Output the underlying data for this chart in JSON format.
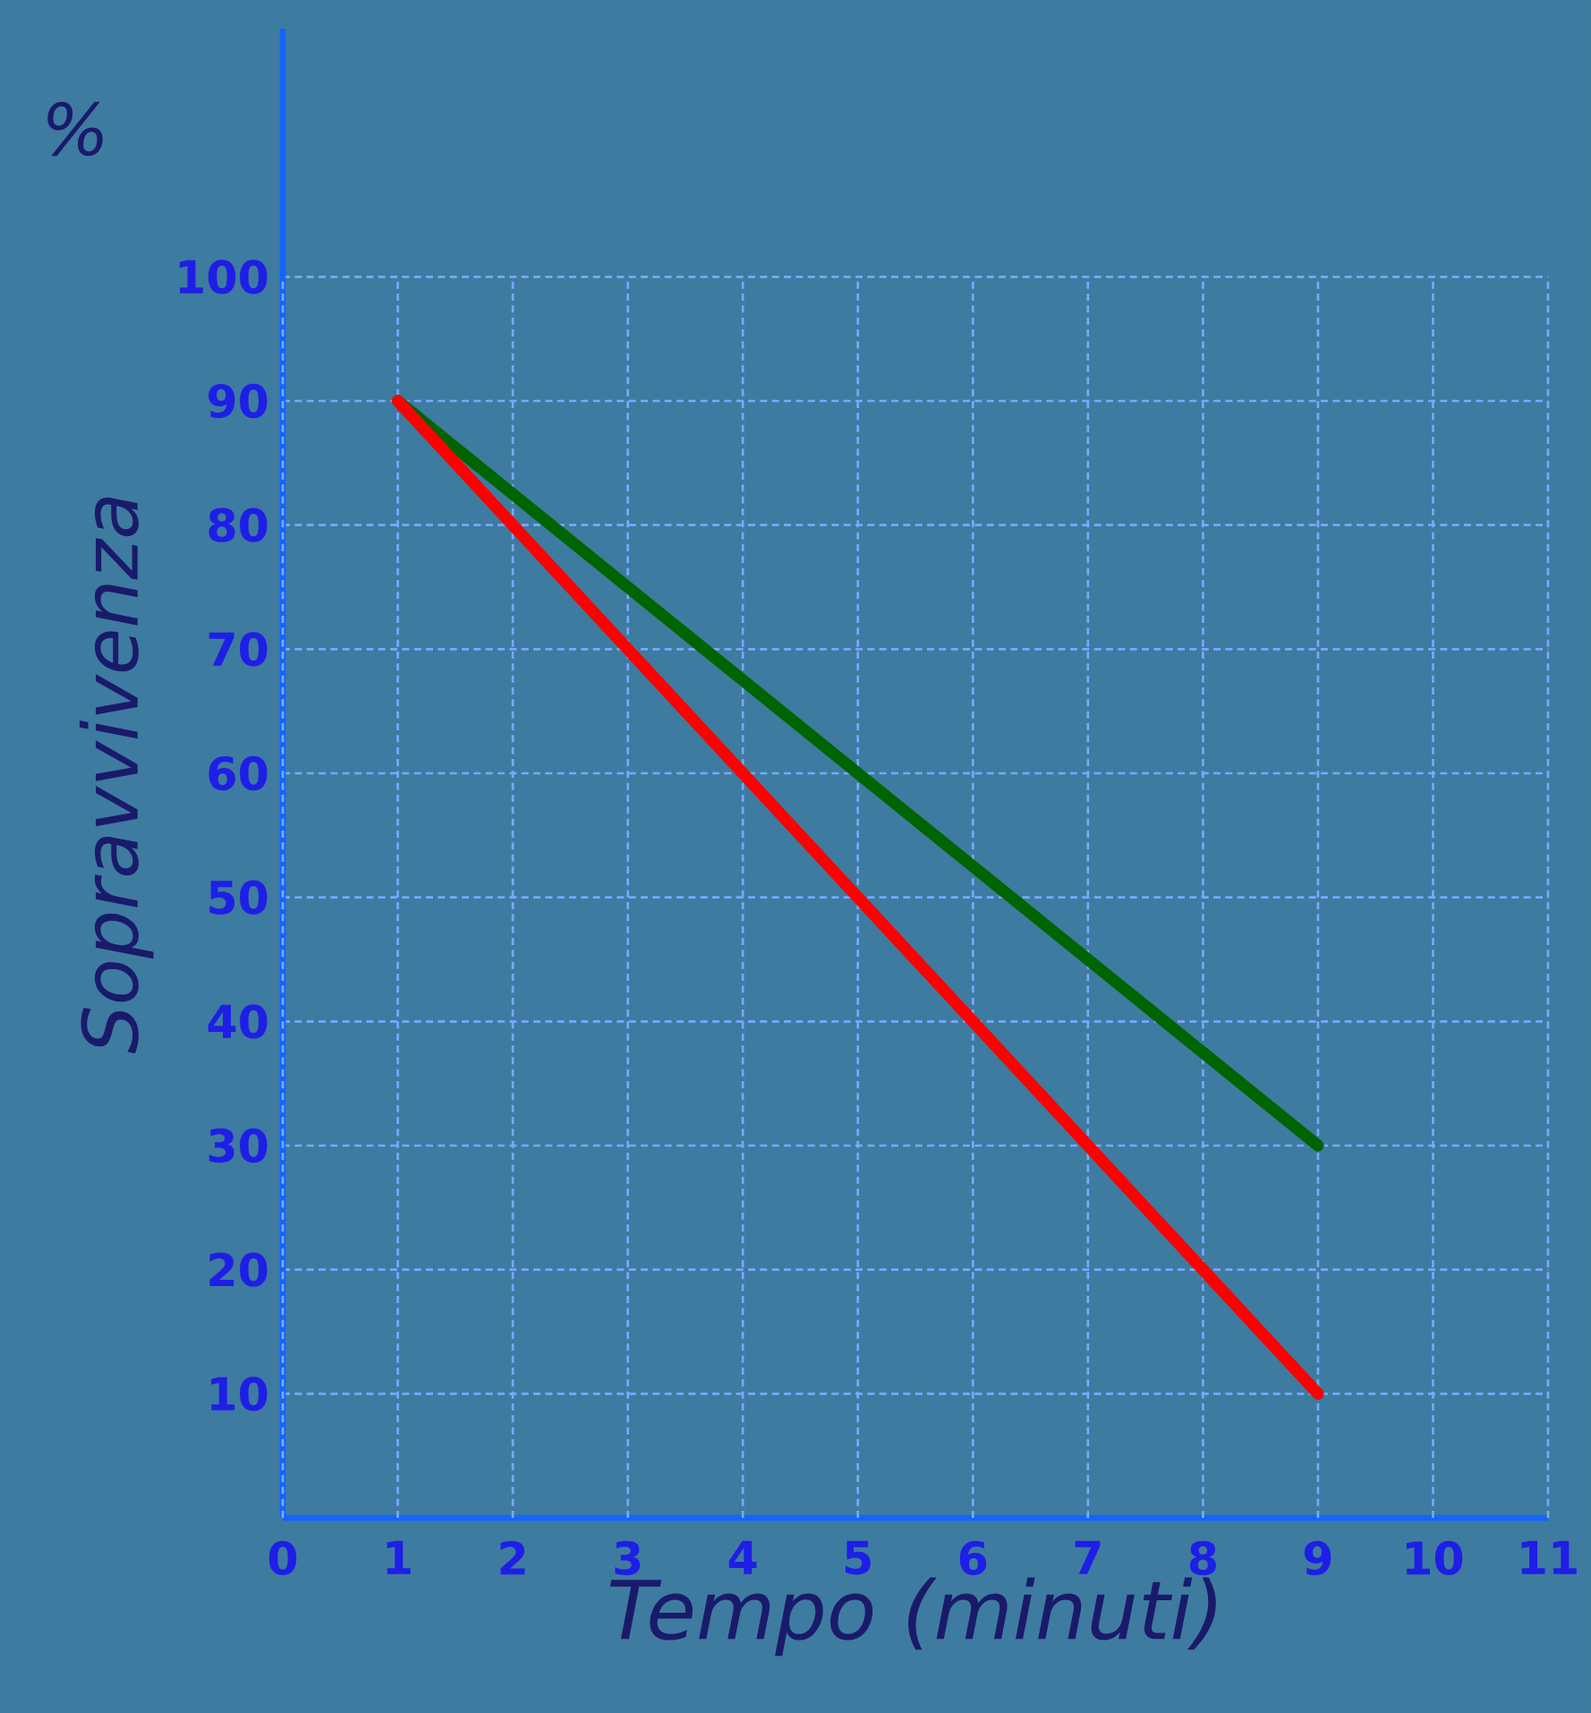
{
  "chart_data": {
    "type": "line",
    "xlabel": "Tempo (minuti)",
    "ylabel": "Sopravvivenza",
    "annotations": [
      "%"
    ],
    "x": [
      1,
      2,
      3,
      4,
      5,
      6,
      7,
      8,
      9
    ],
    "series": [
      {
        "color": "#006400",
        "x": [
          1,
          9
        ],
        "values": [
          90,
          30
        ]
      },
      {
        "color": "#ff0000",
        "values": [
          90,
          80,
          70,
          60,
          50,
          40,
          30,
          20,
          10
        ]
      }
    ],
    "xlim": [
      0,
      11
    ],
    "xticks": [
      0,
      1,
      2,
      3,
      4,
      5,
      6,
      7,
      8,
      9,
      10,
      11
    ],
    "ylim": [
      0,
      120
    ],
    "yticks": [
      10,
      20,
      30,
      40,
      50,
      60,
      70,
      80,
      90,
      100
    ],
    "grid": true,
    "marker": "none",
    "line_style": "solid"
  }
}
